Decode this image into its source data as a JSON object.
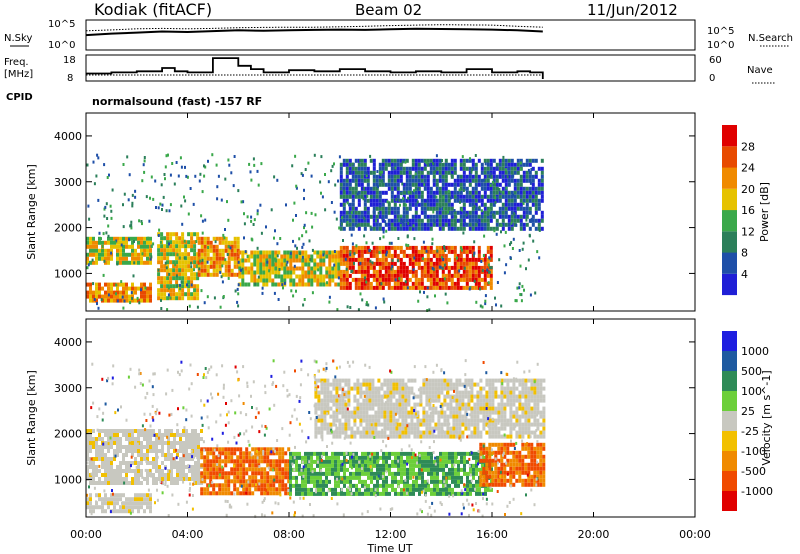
{
  "header": {
    "station": "Kodiak (fitACF)",
    "beam": "Beam 02",
    "date": "11/Jun/2012",
    "mode": "normalsound (fast) -157 RF"
  },
  "labels": {
    "nsky": "N.Sky",
    "freq": "Freq.",
    "mhz": "[MHz]",
    "cpid": "CPID",
    "nsearch": "N.Search",
    "nave": "Nave"
  },
  "small_ticks": {
    "nsky_top": "10^5",
    "nsky_bottom": "10^0",
    "nsearch_top": "10^5",
    "nsearch_bottom": "10^0",
    "freq_top": "18",
    "freq_bottom": "8",
    "nave_top": "60",
    "nave_bottom": "0"
  },
  "colors": {
    "power": [
      "#1f1fd6",
      "#1e4fa8",
      "#2b7f5a",
      "#3aa84a",
      "#e6c200",
      "#f08a00",
      "#e84a00",
      "#e00000"
    ],
    "velocity": [
      "#1e1ee0",
      "#1e5aa0",
      "#2e8b57",
      "#6ccf3a",
      "#c8c8c0",
      "#f2c000",
      "#f08a00",
      "#f04a00",
      "#e00000"
    ],
    "grey_scatter": "#c8c8c0"
  },
  "chart_data": [
    {
      "type": "line",
      "title": "",
      "xlabel": "",
      "ylabel": "N.Sky",
      "x": [
        0,
        1,
        2,
        3,
        4,
        5,
        6,
        7,
        8,
        9,
        10,
        11,
        12,
        13,
        14,
        15,
        16,
        17,
        18
      ],
      "series": [
        {
          "name": "N.Sky",
          "values": [
            300,
            600,
            900,
            1500,
            1200,
            1800,
            2500,
            2000,
            2500,
            3000,
            3500,
            3000,
            4000,
            5000,
            4500,
            4000,
            3500,
            2500,
            1500
          ]
        },
        {
          "name": "N.Search",
          "values": [
            2000,
            3000,
            5000,
            6000,
            5000,
            6000,
            8000,
            9000,
            10000,
            10000,
            12000,
            15000,
            20000,
            25000,
            30000,
            28000,
            25000,
            15000,
            10000
          ]
        }
      ],
      "xlim": [
        0,
        24
      ],
      "ylim": [
        1,
        100000
      ],
      "log_scale": true
    },
    {
      "type": "line",
      "title": "",
      "xlabel": "",
      "ylabel": "Freq. [MHz]",
      "x": [
        0,
        1,
        2,
        3,
        3.5,
        4,
        5,
        6,
        6.5,
        7,
        8,
        9,
        10,
        11,
        12,
        13,
        14,
        15,
        16,
        17,
        17.5,
        18
      ],
      "series": [
        {
          "name": "Freq.",
          "values": [
            10.5,
            11,
            11.5,
            13,
            11.5,
            11,
            17.5,
            14,
            12.5,
            11,
            12,
            11.5,
            12.5,
            11.5,
            11,
            11.5,
            11,
            12.5,
            11,
            11.5,
            11,
            8
          ]
        },
        {
          "name": "Nave",
          "values": [
            11,
            11,
            11,
            11,
            11,
            11,
            11,
            11,
            11,
            11,
            11,
            11,
            11,
            11,
            11,
            11,
            11,
            11,
            11,
            11,
            11,
            0
          ]
        }
      ],
      "xlim": [
        0,
        24
      ],
      "ylim": [
        8,
        18
      ],
      "y2lim": [
        0,
        60
      ]
    },
    {
      "type": "heatmap",
      "title": "",
      "xlabel": "",
      "ylabel": "Slant Range [km]",
      "colorbar_label": "Power [dB]",
      "colorbar_ticks": [
        "4",
        "8",
        "12",
        "16",
        "20",
        "24",
        "28"
      ],
      "xlim": [
        0,
        24
      ],
      "ylim": [
        180,
        4500
      ],
      "yticks": [
        1000,
        2000,
        3000,
        4000
      ],
      "data_end_hour": 18,
      "echo_regions": [
        {
          "t0": 0,
          "t1": 2.5,
          "r0": 1200,
          "r1": 1800,
          "level": 20
        },
        {
          "t0": 0,
          "t1": 2.5,
          "r0": 400,
          "r1": 800,
          "level": 24
        },
        {
          "t0": 2.8,
          "t1": 4.4,
          "r0": 500,
          "r1": 1900,
          "level": 20
        },
        {
          "t0": 4.4,
          "t1": 6,
          "r0": 1000,
          "r1": 1800,
          "level": 24
        },
        {
          "t0": 6,
          "t1": 10,
          "r0": 800,
          "r1": 1500,
          "level": 20
        },
        {
          "t0": 10,
          "t1": 16,
          "r0": 700,
          "r1": 1600,
          "level": 28
        },
        {
          "t0": 10,
          "t1": 18,
          "r0": 2000,
          "r1": 3500,
          "level": 8
        }
      ]
    },
    {
      "type": "heatmap",
      "title": "",
      "xlabel": "Time UT",
      "ylabel": "Slant Range [km]",
      "colorbar_label": "Velocity [m s^-1]",
      "colorbar_ticks": [
        "1000",
        "500",
        "100",
        "25",
        "-25",
        "-100",
        "-500",
        "-1000"
      ],
      "xlim": [
        0,
        24
      ],
      "ylim": [
        180,
        4500
      ],
      "yticks": [
        1000,
        2000,
        3000,
        4000
      ],
      "xticks": [
        "00:00",
        "04:00",
        "08:00",
        "12:00",
        "16:00",
        "20:00",
        "00:00"
      ],
      "data_end_hour": 18,
      "echo_regions": [
        {
          "t0": 0,
          "t1": 4.5,
          "r0": 900,
          "r1": 2100,
          "level": 0
        },
        {
          "t0": 0,
          "t1": 2.5,
          "r0": 300,
          "r1": 700,
          "level": 0
        },
        {
          "t0": 4.5,
          "t1": 8,
          "r0": 700,
          "r1": 1700,
          "level": -150
        },
        {
          "t0": 8,
          "t1": 16,
          "r0": 700,
          "r1": 1600,
          "level": 150
        },
        {
          "t0": 9,
          "t1": 18,
          "r0": 1900,
          "r1": 3200,
          "level": 0
        },
        {
          "t0": 15.5,
          "t1": 18,
          "r0": 900,
          "r1": 1800,
          "level": -150
        }
      ]
    }
  ]
}
